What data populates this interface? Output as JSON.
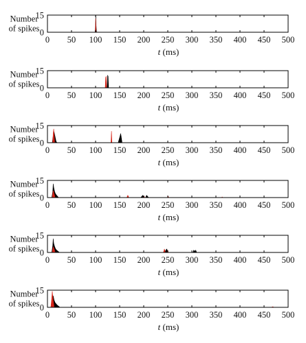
{
  "chart_data": [
    {
      "type": "area",
      "ylabel": [
        "Number",
        "of spikes"
      ],
      "xlabel_var": "t",
      "xlabel_unit": "(ms)",
      "xlim": [
        0,
        500
      ],
      "ylim": [
        0,
        15
      ],
      "xticks": [
        0,
        50,
        100,
        150,
        200,
        250,
        300,
        350,
        400,
        450,
        500
      ],
      "yticks": [
        0,
        15
      ],
      "series": [
        {
          "color": "#000000",
          "x": [
            99,
            100,
            100.5,
            101,
            102
          ],
          "y": [
            0,
            8,
            15,
            6,
            0
          ]
        },
        {
          "color": "#d62418",
          "x": [
            99.5,
            100.2,
            101
          ],
          "y": [
            0,
            12,
            0
          ]
        }
      ]
    },
    {
      "type": "area",
      "ylabel": [
        "Number",
        "of spikes"
      ],
      "xlabel_var": "t",
      "xlabel_unit": "(ms)",
      "xlim": [
        0,
        500
      ],
      "ylim": [
        0,
        15
      ],
      "xticks": [
        0,
        50,
        100,
        150,
        200,
        250,
        300,
        350,
        400,
        450,
        500
      ],
      "yticks": [
        0,
        15
      ],
      "series": [
        {
          "color": "#000000",
          "x": [
            124,
            125,
            126,
            127
          ],
          "y": [
            0,
            11,
            10,
            0
          ]
        },
        {
          "color": "#d62418",
          "x": [
            120,
            121,
            122,
            123
          ],
          "y": [
            0,
            9,
            10,
            0
          ]
        }
      ]
    },
    {
      "type": "area",
      "ylabel": [
        "Number",
        "of spikes"
      ],
      "xlabel_var": "t",
      "xlabel_unit": "(ms)",
      "xlim": [
        0,
        500
      ],
      "ylim": [
        0,
        15
      ],
      "xticks": [
        0,
        50,
        100,
        150,
        200,
        250,
        300,
        350,
        400,
        450,
        500
      ],
      "yticks": [
        0,
        15
      ],
      "series": [
        {
          "color": "#000000",
          "x": [
            10,
            12,
            13,
            14,
            16,
            18,
            20,
            147,
            149,
            151,
            152,
            153,
            155
          ],
          "y": [
            0,
            6,
            10,
            9,
            5,
            1,
            0,
            0,
            3,
            6,
            8,
            6,
            0
          ]
        },
        {
          "color": "#d62418",
          "x": [
            11,
            12,
            13,
            15,
            132,
            133,
            134
          ],
          "y": [
            0,
            8,
            12,
            0,
            0,
            10,
            0
          ]
        }
      ]
    },
    {
      "type": "area",
      "ylabel": [
        "Number",
        "of spikes"
      ],
      "xlabel_var": "t",
      "xlabel_unit": "(ms)",
      "xlim": [
        0,
        500
      ],
      "ylim": [
        0,
        15
      ],
      "xticks": [
        0,
        50,
        100,
        150,
        200,
        250,
        300,
        350,
        400,
        450,
        500
      ],
      "yticks": [
        0,
        15
      ],
      "series": [
        {
          "color": "#000000",
          "x": [
            9,
            11,
            12,
            13,
            15,
            17,
            19,
            21,
            23,
            194,
            196,
            198,
            200,
            204,
            206,
            208,
            210
          ],
          "y": [
            0,
            5,
            12,
            9,
            5,
            3,
            2,
            1,
            0,
            0,
            1,
            2,
            0,
            0,
            2,
            1,
            0
          ]
        },
        {
          "color": "#d62418",
          "x": [
            10,
            12,
            14,
            16,
            165,
            167,
            169,
            200,
            201,
            202,
            250,
            251,
            252,
            362,
            363,
            364
          ],
          "y": [
            0,
            6,
            3,
            0,
            0,
            2,
            0,
            0,
            1,
            0,
            0,
            1,
            0,
            0,
            0.6,
            0
          ]
        }
      ]
    },
    {
      "type": "area",
      "ylabel": [
        "Number",
        "of spikes"
      ],
      "xlabel_var": "t",
      "xlabel_unit": "(ms)",
      "xlim": [
        0,
        500
      ],
      "ylim": [
        0,
        15
      ],
      "xticks": [
        0,
        50,
        100,
        150,
        200,
        250,
        300,
        350,
        400,
        450,
        500
      ],
      "yticks": [
        0,
        15
      ],
      "series": [
        {
          "color": "#000000",
          "x": [
            9,
            11,
            12,
            13,
            15,
            17,
            19,
            22,
            25,
            244,
            246,
            248,
            250,
            302,
            304,
            306,
            308,
            310
          ],
          "y": [
            0,
            6,
            12,
            8,
            5,
            3,
            2,
            1,
            0,
            0,
            2,
            3,
            0,
            0,
            2,
            1,
            2,
            0
          ]
        },
        {
          "color": "#d62418",
          "x": [
            10,
            12,
            14,
            16,
            241,
            243,
            245,
            249,
            250,
            251
          ],
          "y": [
            0,
            5,
            3,
            0,
            0,
            3,
            0,
            0,
            2,
            0
          ]
        }
      ]
    },
    {
      "type": "area",
      "ylabel": [
        "Number",
        "of spikes"
      ],
      "xlabel_var": "t",
      "xlabel_unit": "(ms)",
      "xlim": [
        0,
        500
      ],
      "ylim": [
        0,
        15
      ],
      "xticks": [
        0,
        50,
        100,
        150,
        200,
        250,
        300,
        350,
        400,
        450,
        500
      ],
      "yticks": [
        0,
        15
      ],
      "series": [
        {
          "color": "#000000",
          "x": [
            8,
            10,
            12,
            14,
            16,
            18,
            20,
            23,
            26
          ],
          "y": [
            0,
            8,
            10,
            6,
            4,
            3,
            2,
            1,
            0
          ]
        },
        {
          "color": "#d62418",
          "x": [
            7,
            9,
            10,
            12,
            14,
            465,
            468,
            471
          ],
          "y": [
            0,
            8,
            14,
            6,
            0,
            0,
            0.5,
            0
          ]
        }
      ]
    }
  ]
}
